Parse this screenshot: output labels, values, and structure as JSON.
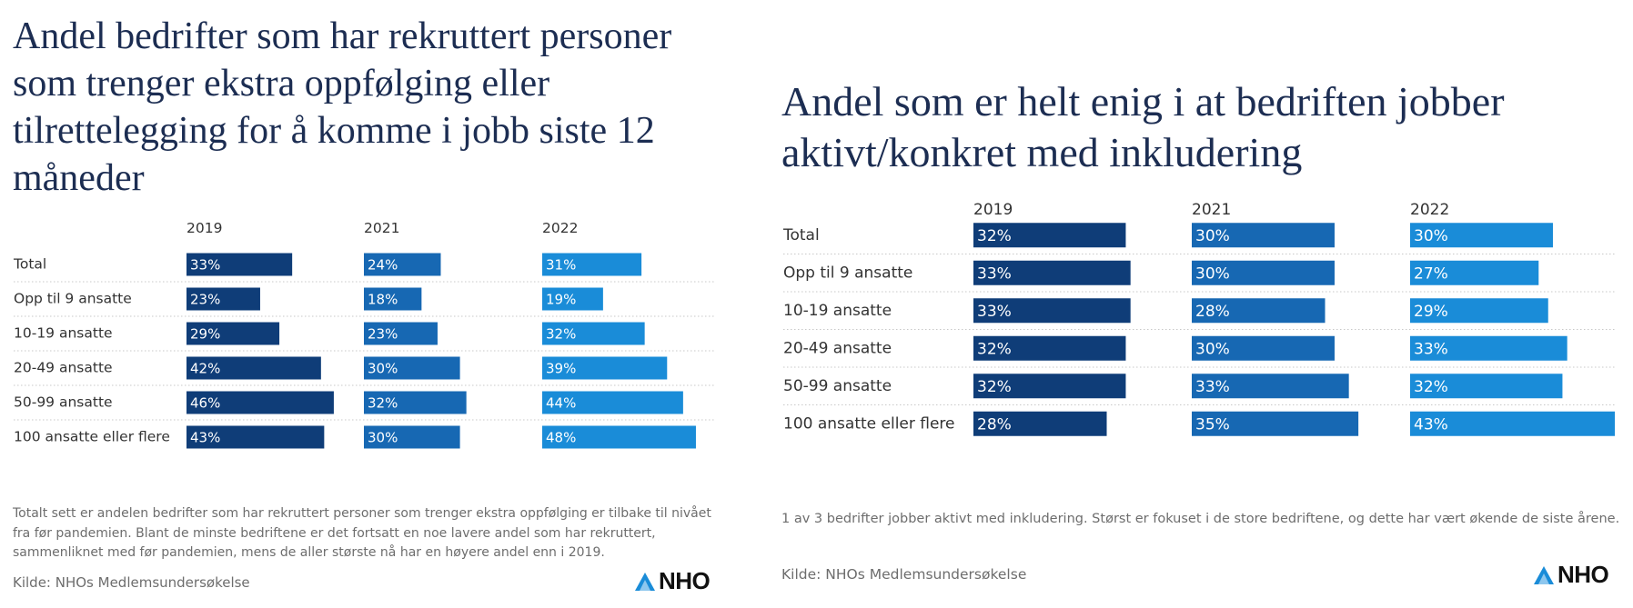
{
  "colors": {
    "y2019": "#0f3d78",
    "y2021": "#1768b3",
    "y2022": "#1a8cd8",
    "title": "#1c2d52",
    "note": "#6d6d6d",
    "label": "#333333",
    "bar_text": "#ffffff",
    "grid": "#c8c8c8"
  },
  "logo": {
    "text": "NHO",
    "icon": "nho-logo-icon"
  },
  "charts": [
    {
      "title": "Andel bedrifter som har rekruttert personer som trenger ekstra oppfølging eller tilrettelegging for å komme i jobb siste 12 måneder",
      "note": "Totalt sett er andelen bedrifter som har rekruttert personer som trenger ekstra oppfølging er tilbake til nivået fra før pandemien. Blant de minste bedriftene er det fortsatt en noe lavere andel som har rekruttert, sammenliknet med før pandemien, mens de aller største nå har en høyere andel enn i 2019.",
      "source": "Kilde: NHOs Medlemsundersøkelse"
    },
    {
      "title": "Andel som er helt enig i at bedriften jobber aktivt/konkret med inkludering",
      "note": "1 av 3 bedrifter jobber aktivt med inkludering. Størst er fokuset i de store bedriftene, og dette har vært økende de siste årene.",
      "source": "Kilde: NHOs Medlemsundersøkelse"
    }
  ],
  "chart_data": [
    {
      "type": "bar",
      "categories": [
        "Total",
        "Opp til 9 ansatte",
        "10-19 ansatte",
        "20-49 ansatte",
        "50-99 ansatte",
        "100 ansatte eller flere"
      ],
      "series": [
        {
          "name": "2019",
          "values": [
            33,
            23,
            29,
            42,
            46,
            43
          ]
        },
        {
          "name": "2021",
          "values": [
            24,
            18,
            23,
            30,
            32,
            30
          ]
        },
        {
          "name": "2022",
          "values": [
            31,
            19,
            32,
            39,
            44,
            48
          ]
        }
      ],
      "value_suffix": "%",
      "xlim": [
        0,
        50
      ],
      "grid": "dotted row separators"
    },
    {
      "type": "bar",
      "categories": [
        "Total",
        "Opp til 9 ansatte",
        "10-19 ansatte",
        "20-49 ansatte",
        "50-99 ansatte",
        "100 ansatte eller flere"
      ],
      "series": [
        {
          "name": "2019",
          "values": [
            32,
            33,
            33,
            32,
            32,
            28
          ]
        },
        {
          "name": "2021",
          "values": [
            30,
            30,
            28,
            30,
            33,
            35
          ]
        },
        {
          "name": "2022",
          "values": [
            30,
            27,
            29,
            33,
            32,
            43
          ]
        }
      ],
      "value_suffix": "%",
      "xlim": [
        0,
        43
      ],
      "grid": "dotted row separators"
    }
  ]
}
